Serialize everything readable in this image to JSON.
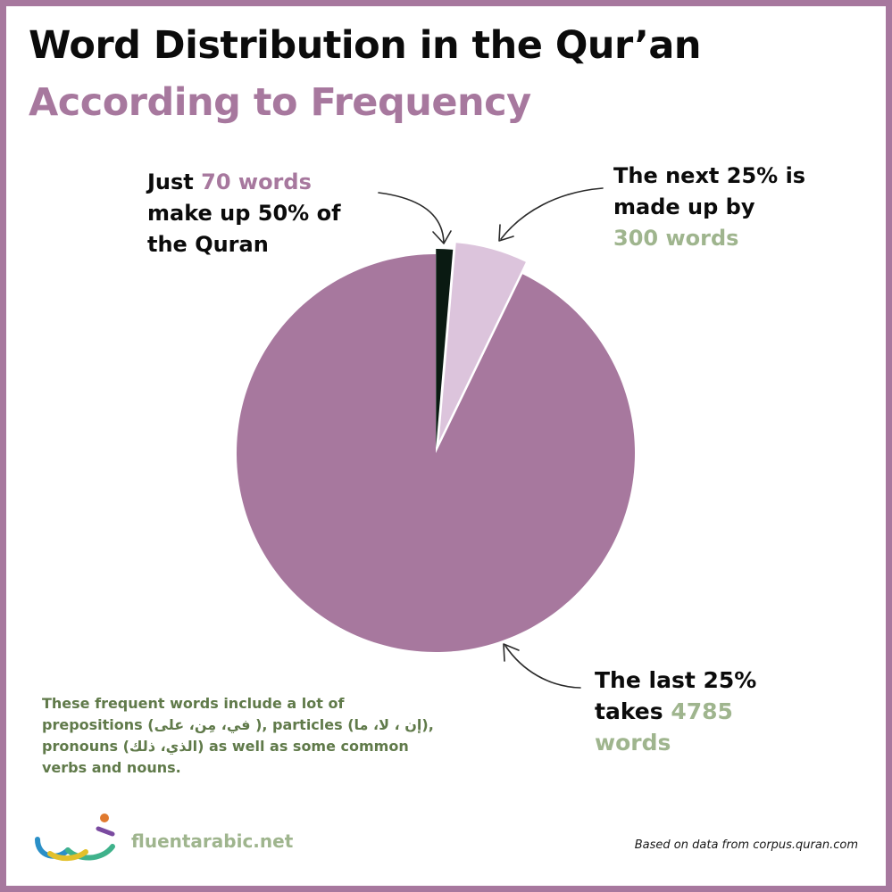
{
  "title": "Word Distribution in the Qur’an",
  "subtitle": "According to Frequency",
  "chart_data": {
    "type": "pie",
    "title": "Word Distribution in the Qur’an",
    "subtitle": "According to Frequency",
    "slices": [
      {
        "label": "70 words",
        "value": 70,
        "color": "#0a1a12"
      },
      {
        "label": "300 words",
        "value": 300,
        "color": "#dcc4dc"
      },
      {
        "label": "4785 words",
        "value": 4785,
        "color": "#a7789e"
      }
    ],
    "start_angle_deg": 0,
    "direction": "clockwise"
  },
  "annotations": {
    "first": {
      "line1_pre": "Just ",
      "line1_hl": "70 words",
      "line2": "make up 50% of",
      "line3": "the Quran"
    },
    "second": {
      "line1": "The next 25% is",
      "line2": "made up by",
      "line3_hl": "300 words"
    },
    "third": {
      "line1": "The last 25%",
      "line2_pre": "takes ",
      "line2_hl": "4785",
      "line3_hl": "words"
    }
  },
  "note": {
    "line1": "These frequent words include a lot of",
    "line2": "prepositions (في، مِن، على ), particles (إن ، لا، ما),",
    "line3": "pronouns (الذي، ذلك) as well as some common",
    "line4": "verbs and nouns."
  },
  "logo_text": "fluentarabic.net",
  "source": "Based on data from corpus.quran.com",
  "colors": {
    "frame": "#a7789e",
    "purple": "#a7789e",
    "light_purple": "#dcc4dc",
    "dark": "#0a1a12",
    "green_text": "#9fb58e",
    "note_text": "#607a4a"
  }
}
